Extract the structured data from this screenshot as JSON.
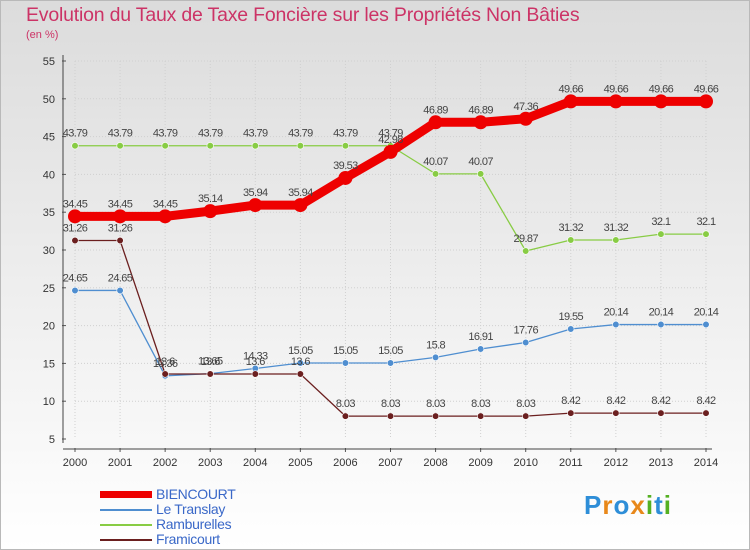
{
  "chart_data": {
    "type": "line",
    "title": "Evolution du Taux de Taxe Foncière sur les Propriétés Non Bâties",
    "ylabel": "(en %)",
    "xlabel": "",
    "ylim": [
      5,
      55
    ],
    "yticks": [
      5,
      10,
      15,
      20,
      25,
      30,
      35,
      40,
      45,
      50,
      55
    ],
    "categories": [
      "2000",
      "2001",
      "2002",
      "2003",
      "2004",
      "2005",
      "2006",
      "2007",
      "2008",
      "2009",
      "2010",
      "2011",
      "2012",
      "2013",
      "2014"
    ],
    "series": [
      {
        "name": "BIENCOURT",
        "color": "#ee0000",
        "values": [
          34.45,
          34.45,
          34.45,
          35.14,
          35.94,
          35.94,
          39.53,
          42.98,
          46.89,
          46.89,
          47.36,
          49.66,
          49.66,
          49.66,
          49.66
        ]
      },
      {
        "name": "Le Translay",
        "color": "#4f8ed0",
        "values": [
          24.65,
          24.65,
          13.36,
          13.65,
          14.33,
          15.05,
          15.05,
          15.05,
          15.8,
          16.91,
          17.76,
          19.55,
          20.14,
          20.14,
          20.14
        ]
      },
      {
        "name": "Ramburelles",
        "color": "#88cc44",
        "values": [
          43.79,
          43.79,
          43.79,
          43.79,
          43.79,
          43.79,
          43.79,
          43.79,
          40.07,
          40.07,
          29.87,
          31.32,
          31.32,
          32.1,
          32.1
        ]
      },
      {
        "name": "Framicourt",
        "color": "#6b1f1f",
        "values": [
          31.26,
          31.26,
          13.6,
          13.6,
          13.6,
          13.6,
          8.03,
          8.03,
          8.03,
          8.03,
          8.03,
          8.42,
          8.42,
          8.42,
          8.42
        ]
      }
    ],
    "data_labels": {
      "BIENCOURT": [
        "34.45",
        "34.45",
        "34.45",
        "35.14",
        "35.94",
        "35.94",
        "39.53",
        "42.98",
        "46.89",
        "46.89",
        "47.36",
        "49.66",
        "49.66",
        "49.66",
        "49.66"
      ],
      "Le Translay": [
        "24.65",
        "24.65",
        "13.36",
        "13.65",
        "14.33",
        "15.05",
        "15.05",
        "15.05",
        "15.8",
        "16.91",
        "17.76",
        "19.55",
        "20.14",
        "20.14",
        "20.14"
      ],
      "Ramburelles": [
        "43.79",
        "43.79",
        "43.79",
        "43.79",
        "43.79",
        "43.79",
        "43.79",
        "43.79",
        "40.07",
        "40.07",
        "29.87",
        "31.32",
        "31.32",
        "32.1",
        "32.1"
      ],
      "Framicourt": [
        "31.26",
        "31.26",
        "13.6",
        "13.6",
        "13.6",
        "13.6",
        "8.03",
        "8.03",
        "8.03",
        "8.03",
        "8.03",
        "8.42",
        "8.42",
        "8.42",
        "8.42"
      ]
    },
    "legend_position": "bottom-left",
    "grid": true
  },
  "brand": {
    "logo_letters": [
      "P",
      "r",
      "o",
      "x",
      "i",
      "t",
      "i"
    ],
    "logo_colors": [
      "#2e8ed8",
      "#e8881a",
      "#2e8ed8",
      "#e8881a",
      "#55b022",
      "#2e8ed8",
      "#55b022"
    ]
  },
  "colors": {
    "title": "#cc3366",
    "axis_text": "#333333",
    "legend_text": "#3a68c8",
    "grid": "#d0d0d0"
  }
}
